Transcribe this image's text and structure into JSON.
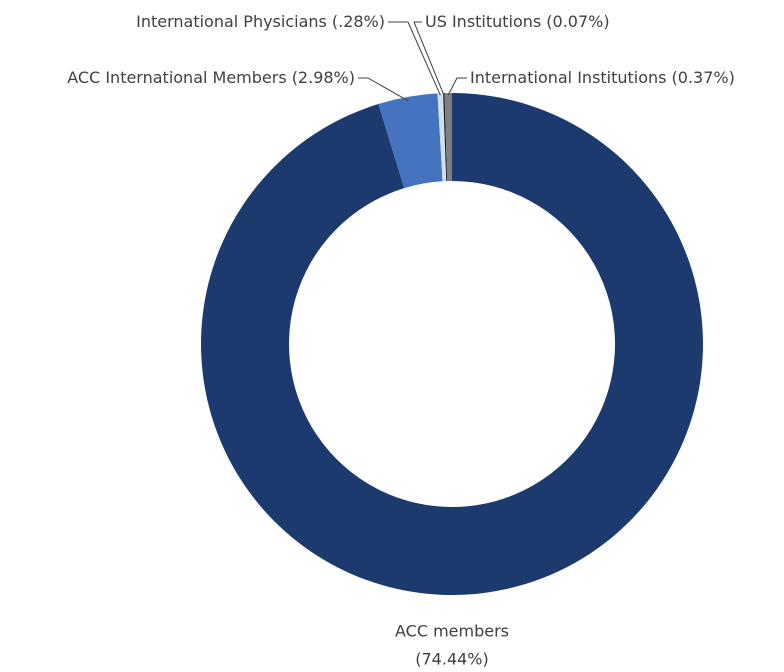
{
  "chart_data": {
    "type": "donut",
    "categories": [
      "ACC members",
      "ACC International Members",
      "International Physicians",
      "US Institutions",
      "International Institutions"
    ],
    "values": [
      74.44,
      2.98,
      0.28,
      0.07,
      0.37
    ],
    "value_labels": [
      "(74.44%)",
      "(2.98%)",
      "(.28%)",
      "(0.07%)",
      "(0.37%)"
    ],
    "colors": [
      "#1c3a6e",
      "#4673c0",
      "#cfe0f3",
      "#1a1a1a",
      "#7f7f7f"
    ]
  }
}
